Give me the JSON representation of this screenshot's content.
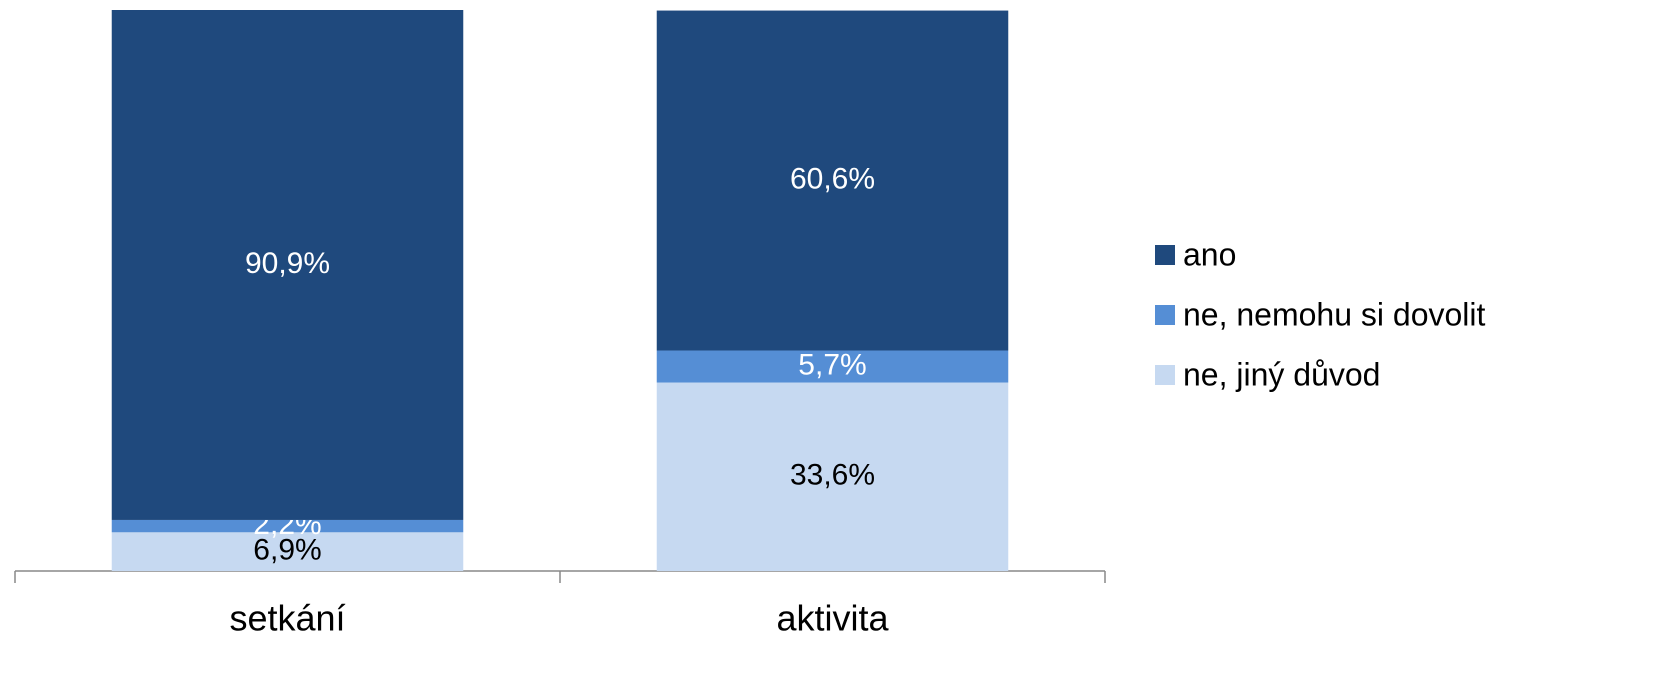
{
  "chart_data": {
    "type": "bar",
    "stacked": true,
    "categories": [
      "setkání",
      "aktivita"
    ],
    "series": [
      {
        "name": "ano",
        "color": "#1f497d",
        "values": [
          90.9,
          60.6
        ],
        "value_labels": [
          "90,9%",
          "60,6%"
        ],
        "label_color": "#ffffff"
      },
      {
        "name": "ne, nemohu si dovolit",
        "color": "#558ed5",
        "values": [
          2.2,
          5.7
        ],
        "value_labels": [
          "2,2%",
          "5,7%"
        ],
        "label_color": "#ffffff"
      },
      {
        "name": "ne, jiný důvod",
        "color": "#c6d9f1",
        "values": [
          6.9,
          33.6
        ],
        "value_labels": [
          "6,9%",
          "33,6%"
        ],
        "label_color": "#000000"
      }
    ],
    "ylim": [
      0,
      100
    ],
    "legend": "right"
  }
}
